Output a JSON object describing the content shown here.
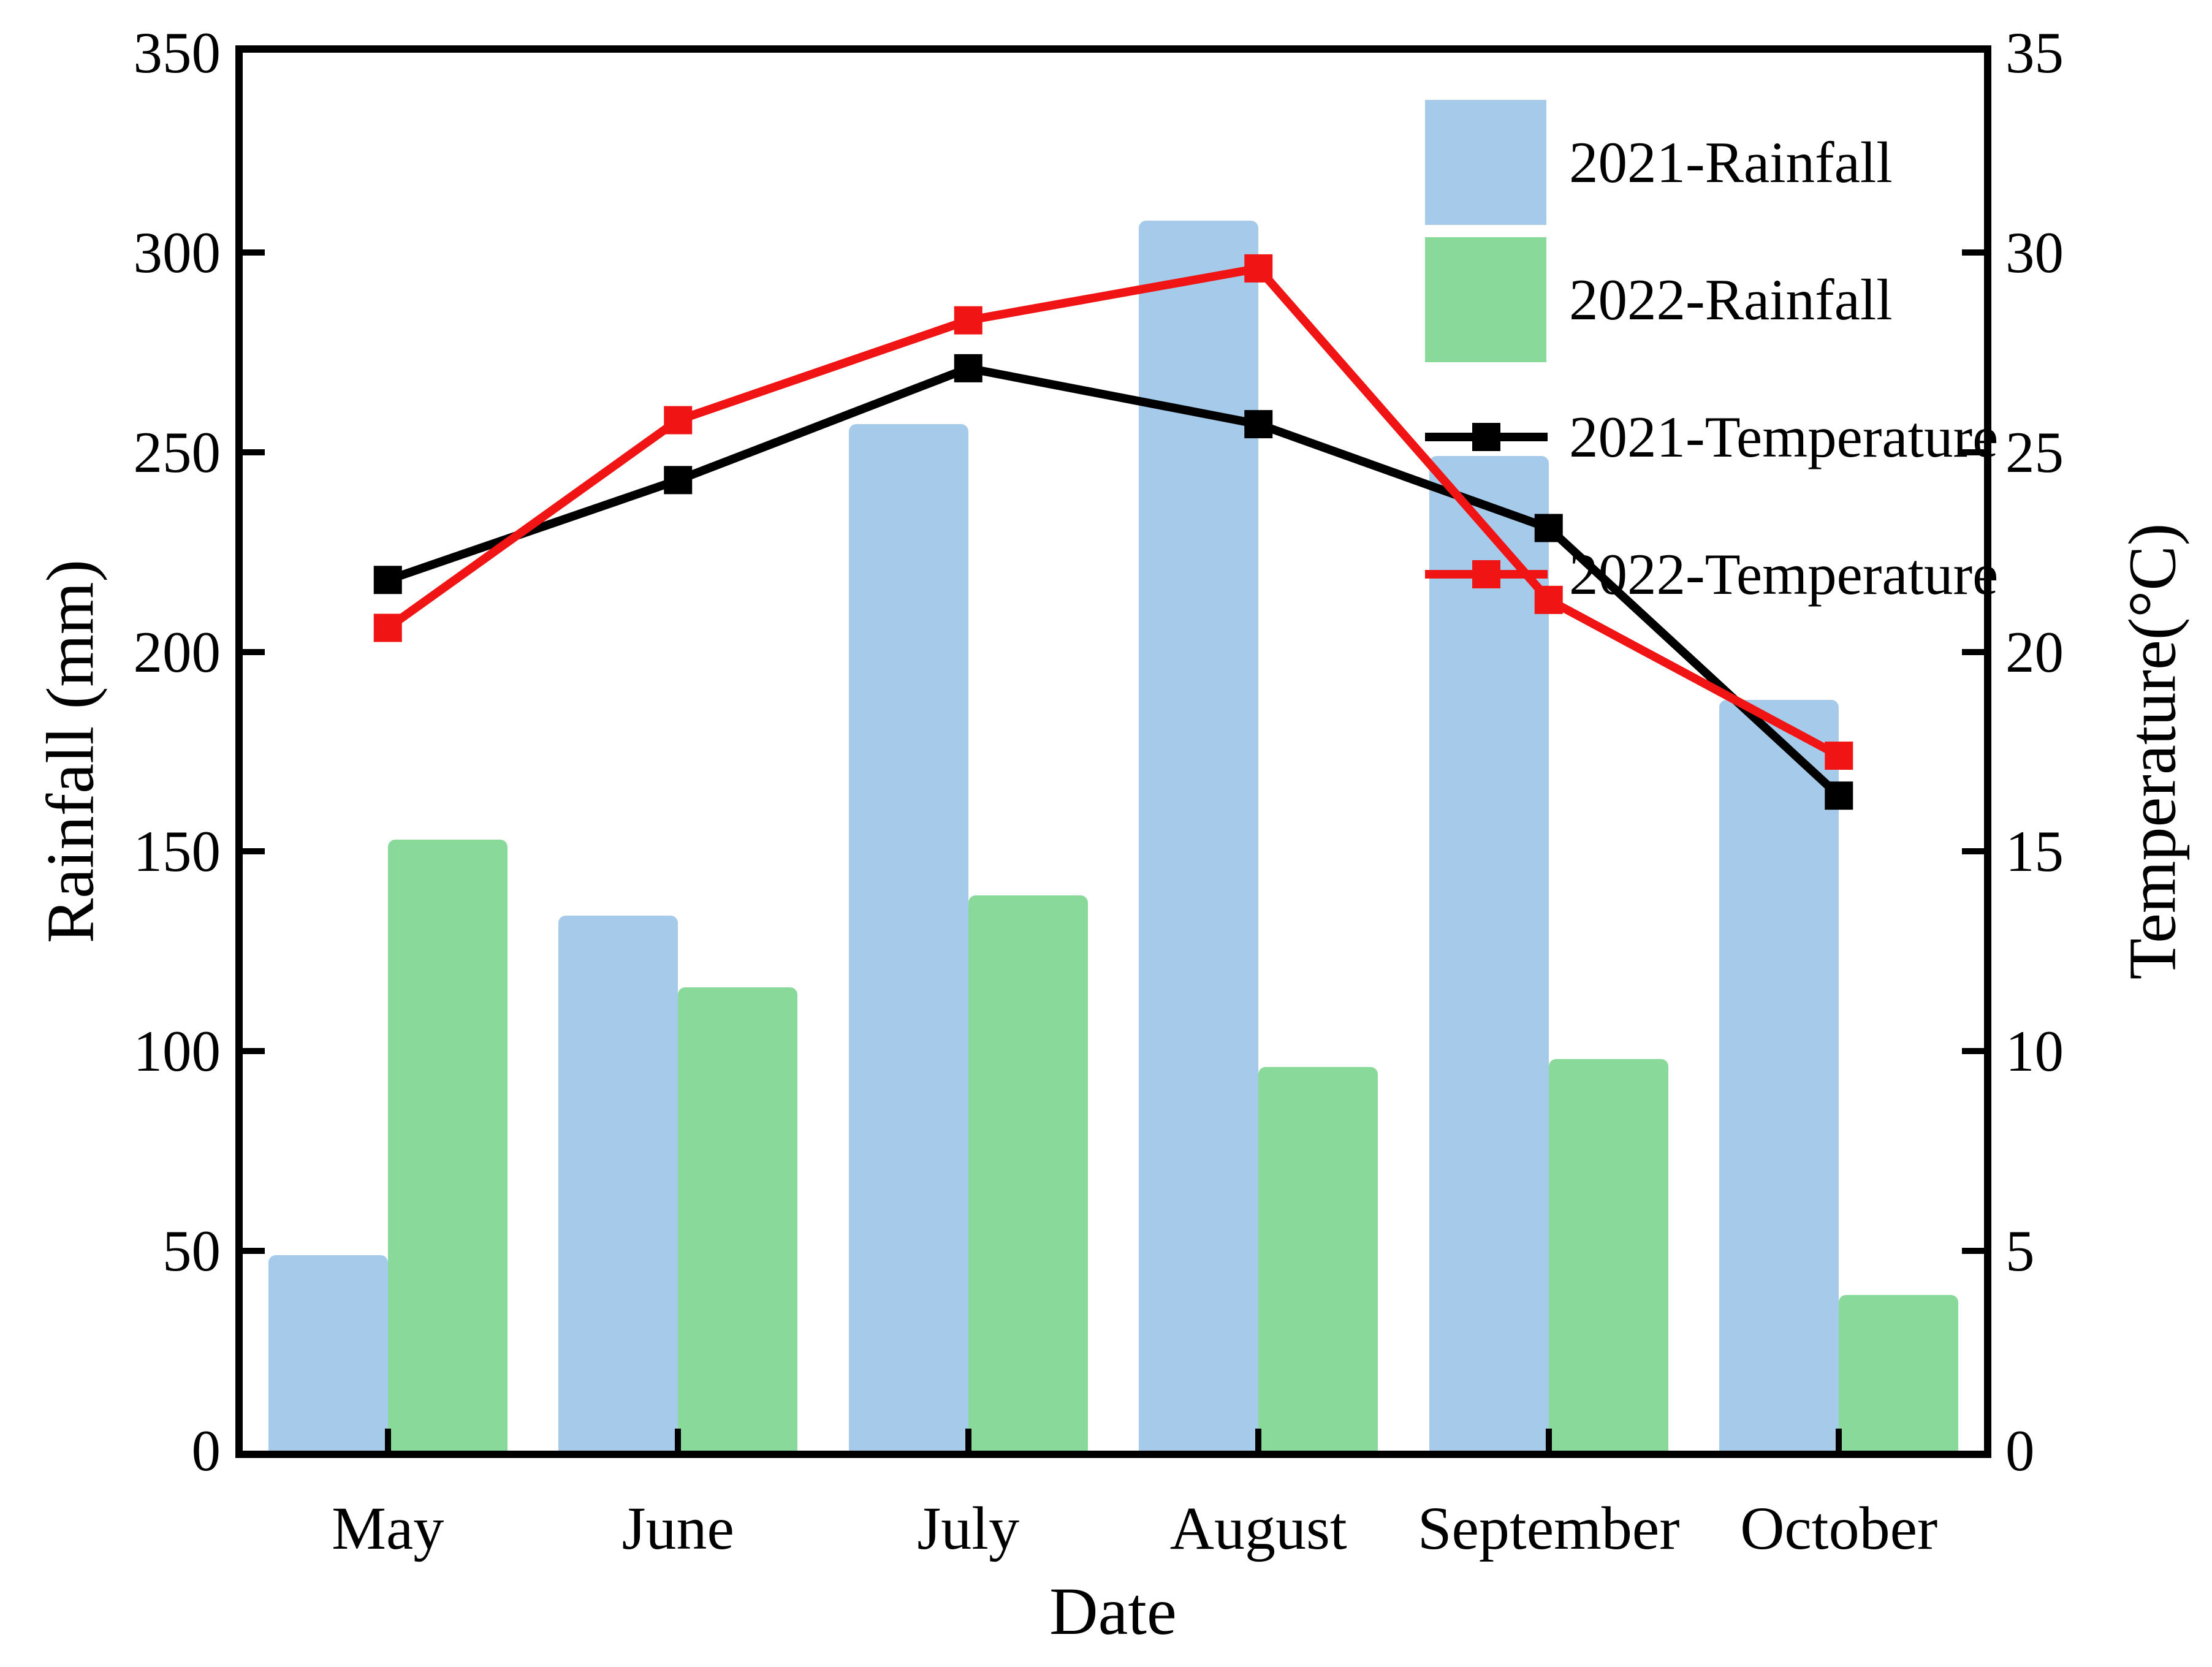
{
  "chart_data": {
    "type": "bar+line",
    "categories": [
      "May",
      "June",
      "July",
      "August",
      "September",
      "October"
    ],
    "series": [
      {
        "name": "2021-Rainfall",
        "type": "bar",
        "axis": "left",
        "color": "#A6CBEA",
        "values": [
          49,
          134,
          257,
          308,
          249,
          188
        ]
      },
      {
        "name": "2022-Rainfall",
        "type": "bar",
        "axis": "left",
        "color": "#89D99B",
        "values": [
          153,
          116,
          139,
          96,
          98,
          39
        ]
      },
      {
        "name": "2021-Temperature",
        "type": "line",
        "axis": "right",
        "color": "#000000",
        "values": [
          21.8,
          24.3,
          27.1,
          25.7,
          23.1,
          16.4
        ]
      },
      {
        "name": "2022-Temperature",
        "type": "line",
        "axis": "right",
        "color": "#F01414",
        "values": [
          20.6,
          25.8,
          28.3,
          29.6,
          21.3,
          17.4
        ]
      }
    ],
    "xlabel": "Date",
    "ylabel_left": "Rainfall (mm)",
    "ylabel_right": "Temperature(°C)",
    "ylim_left": [
      0,
      350
    ],
    "ylim_right": [
      0,
      35
    ],
    "yticks_left": [
      350,
      300,
      250,
      200,
      150,
      100,
      50,
      0
    ],
    "yticks_right": [
      35,
      30,
      25,
      20,
      15,
      10,
      5,
      0
    ],
    "legend_position": "top-right-inside",
    "grid": false,
    "frame_color": "#000000",
    "background_color": "#ffffff"
  }
}
